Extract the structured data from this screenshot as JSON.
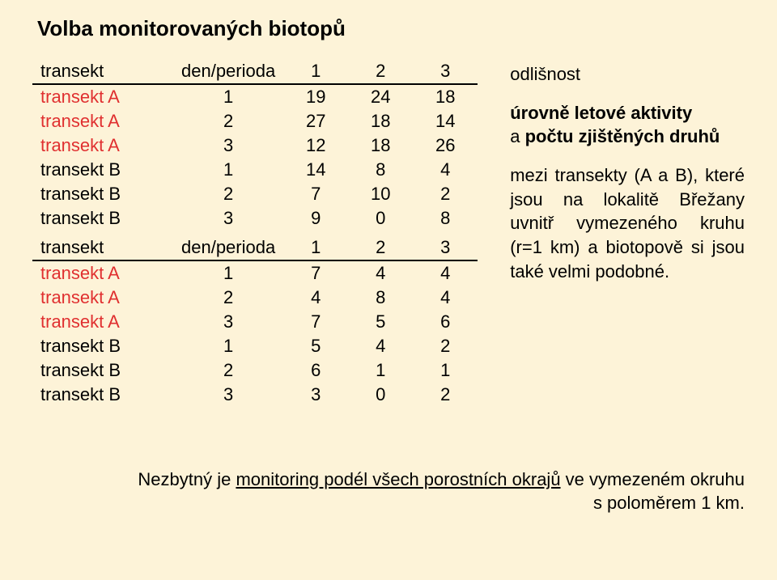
{
  "title": "Volba monitorovaných biotopů",
  "table1": {
    "header": {
      "label": "transekt",
      "c1": "den/perioda",
      "c2": "1",
      "c3": "2",
      "c4": "3"
    },
    "rows": [
      {
        "label": "transekt A",
        "c1": "1",
        "c2": "19",
        "c3": "24",
        "c4": "18",
        "red": true
      },
      {
        "label": "transekt A",
        "c1": "2",
        "c2": "27",
        "c3": "18",
        "c4": "14",
        "red": true
      },
      {
        "label": "transekt A",
        "c1": "3",
        "c2": "12",
        "c3": "18",
        "c4": "26",
        "red": true
      },
      {
        "label": "transekt B",
        "c1": "1",
        "c2": "14",
        "c3": "8",
        "c4": "4"
      },
      {
        "label": "transekt B",
        "c1": "2",
        "c2": "7",
        "c3": "10",
        "c4": "2"
      },
      {
        "label": "transekt B",
        "c1": "3",
        "c2": "9",
        "c3": "0",
        "c4": "8"
      }
    ]
  },
  "table2": {
    "header": {
      "label": "transekt",
      "c1": "den/perioda",
      "c2": "1",
      "c3": "2",
      "c4": "3"
    },
    "rows": [
      {
        "label": "transekt A",
        "c1": "1",
        "c2": "7",
        "c3": "4",
        "c4": "4",
        "red": true
      },
      {
        "label": "transekt A",
        "c1": "2",
        "c2": "4",
        "c3": "8",
        "c4": "4",
        "red": true
      },
      {
        "label": "transekt A",
        "c1": "3",
        "c2": "7",
        "c3": "5",
        "c4": "6",
        "red": true
      },
      {
        "label": "transekt B",
        "c1": "1",
        "c2": "5",
        "c3": "4",
        "c4": "2"
      },
      {
        "label": "transekt B",
        "c1": "2",
        "c2": "6",
        "c3": "1",
        "c4": "1"
      },
      {
        "label": "transekt B",
        "c1": "3",
        "c2": "3",
        "c3": "0",
        "c4": "2"
      }
    ]
  },
  "side": {
    "p1": "odlišnost",
    "p2a": "úrovně letové aktivity",
    "p2b_pre": "a ",
    "p2b": "počtu zjištěných druhů",
    "p3": "mezi transekty (A a B), které jsou na lokalitě Břežany uvnitř vymezeného kruhu (r=1 km) a biotopově si jsou také velmi podobné."
  },
  "footer": {
    "pre": "Nezbytný je ",
    "u": "monitoring podél všech porostních okrajů",
    "post1": " ve vymezeném okruhu",
    "post2": "s poloměrem 1 km."
  }
}
